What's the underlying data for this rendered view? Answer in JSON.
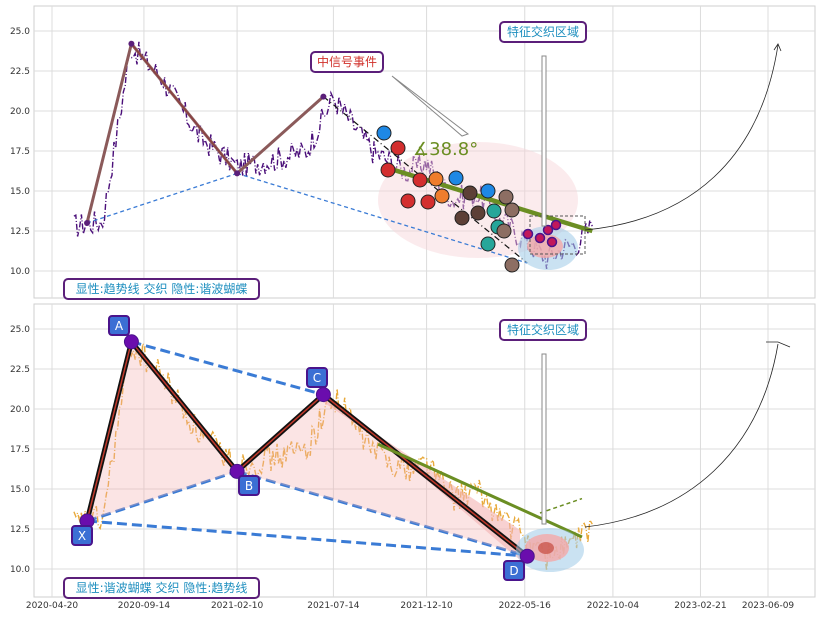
{
  "chart_data": [
    {
      "type": "line",
      "panel": "top",
      "ylim": [
        8.3,
        26.5
      ],
      "yticks": [
        "10.0",
        "12.5",
        "15.0",
        "17.5",
        "20.0",
        "22.5",
        "25.0"
      ],
      "ytick_values": [
        10.0,
        12.5,
        15.0,
        17.5,
        20.0,
        22.5,
        25.0
      ],
      "price_color": "#4b0f7a",
      "series": [
        {
          "x": [
            "2020-05-25",
            "2020-07-10",
            "2020-08-25",
            "2020-10-15",
            "2020-12-10",
            "2021-02-10",
            "2021-04-15",
            "2021-06-01",
            "2021-07-14",
            "2021-09-15",
            "2021-11-10",
            "2021-12-10",
            "2022-01-20",
            "2022-03-01",
            "2022-04-15",
            "2022-05-16",
            "2022-06-20",
            "2022-07-20",
            "2022-08-10",
            "2022-09-01"
          ],
          "y": [
            12.8,
            13.1,
            24.0,
            22.0,
            18.5,
            16.5,
            17.0,
            17.5,
            20.8,
            17.5,
            16.2,
            16.8,
            14.5,
            14.8,
            13.0,
            12.0,
            10.8,
            11.5,
            11.8,
            12.8
          ]
        }
      ],
      "trend_lines": [
        {
          "kind": "zigzag",
          "color": "#8b5a5a",
          "points": [
            [
              "2020-06-15",
              13.0
            ],
            [
              "2020-08-25",
              24.2
            ],
            [
              "2021-02-10",
              16.1
            ],
            [
              "2021-06-28",
              20.9
            ]
          ]
        },
        {
          "kind": "dashdot",
          "color": "#111111",
          "points": [
            [
              "2021-06-28",
              20.9
            ],
            [
              "2022-05-20",
              10.5
            ]
          ]
        },
        {
          "kind": "dashed",
          "color": "#3a7bd5",
          "points": [
            [
              "2020-06-15",
              13.0
            ],
            [
              "2021-02-10",
              16.1
            ]
          ]
        },
        {
          "kind": "dashed",
          "color": "#3a7bd5",
          "points": [
            [
              "2021-02-10",
              16.1
            ],
            [
              "2022-05-20",
              10.5
            ]
          ]
        },
        {
          "kind": "thick",
          "color": "#6b8e23",
          "points": [
            [
              "2021-10-20",
              16.3
            ],
            [
              "2022-09-01",
              12.5
            ]
          ]
        }
      ],
      "angle_label": "∡38.8°",
      "annotations": [
        {
          "text": "中信号事件",
          "color": "red"
        },
        {
          "text": "特征交织区域",
          "color": "blue"
        },
        {
          "text": "显性:趋势线 交织 隐性:谐波蝴蝶",
          "color": "blue"
        }
      ]
    },
    {
      "type": "line",
      "panel": "bottom",
      "ylim": [
        8.3,
        26.5
      ],
      "yticks": [
        "10.0",
        "12.5",
        "15.0",
        "17.5",
        "20.0",
        "22.5",
        "25.0"
      ],
      "ytick_values": [
        10.0,
        12.5,
        15.0,
        17.5,
        20.0,
        22.5,
        25.0
      ],
      "xticks": [
        "2020-04-20",
        "2020-09-14",
        "2021-02-10",
        "2021-07-14",
        "2021-12-10",
        "2022-05-16",
        "2022-10-04",
        "2023-02-21",
        "2023-06-09"
      ],
      "price_color": "#e8a93a",
      "series": [
        {
          "x": [
            "2020-05-25",
            "2020-07-10",
            "2020-08-25",
            "2020-10-15",
            "2020-12-10",
            "2021-02-10",
            "2021-04-15",
            "2021-06-01",
            "2021-07-14",
            "2021-09-15",
            "2021-11-10",
            "2021-12-10",
            "2022-01-20",
            "2022-03-01",
            "2022-04-15",
            "2022-05-16",
            "2022-06-20",
            "2022-07-20",
            "2022-08-10",
            "2022-09-01"
          ],
          "y": [
            12.8,
            13.1,
            24.0,
            22.0,
            18.5,
            16.5,
            17.0,
            17.5,
            20.8,
            17.5,
            16.2,
            16.8,
            14.5,
            14.8,
            13.0,
            12.0,
            10.8,
            11.5,
            11.8,
            12.8
          ]
        }
      ],
      "harmonic_points": [
        {
          "label": "X",
          "x": "2020-06-15",
          "y": 13.0
        },
        {
          "label": "A",
          "x": "2020-08-25",
          "y": 24.2
        },
        {
          "label": "B",
          "x": "2021-02-10",
          "y": 16.1
        },
        {
          "label": "C",
          "x": "2021-06-28",
          "y": 20.9
        },
        {
          "label": "D",
          "x": "2022-05-20",
          "y": 10.8
        }
      ],
      "annotations": [
        {
          "text": "特征交织区域",
          "color": "blue"
        },
        {
          "text": "显性:谐波蝴蝶 交织 隐性:趋势线",
          "color": "blue"
        }
      ]
    }
  ]
}
